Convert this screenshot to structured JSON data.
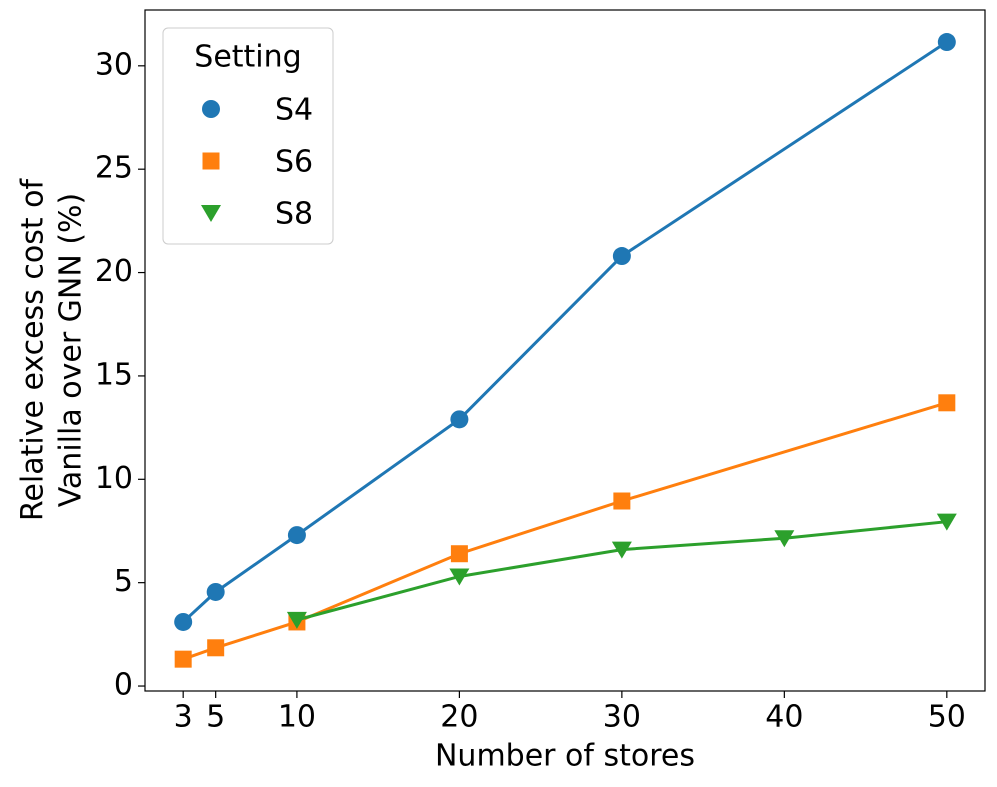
{
  "chart_data": {
    "type": "line",
    "xlabel": "Number of stores",
    "ylabel": [
      "Relative excess cost of",
      "Vanilla over GNN (%)"
    ],
    "legend_title": "Setting",
    "legend_loc": "upper left",
    "xlim": [
      0.65,
      52.35
    ],
    "xticks": [
      3,
      5,
      10,
      20,
      30,
      40,
      50
    ],
    "ylim": [
      -0.24,
      32.7
    ],
    "yticks": [
      0,
      5,
      10,
      15,
      20,
      25,
      30
    ],
    "series": [
      {
        "name": "S4",
        "color": "#1f77b4",
        "marker": "circle",
        "x": [
          3,
          5,
          10,
          20,
          30,
          50
        ],
        "values": [
          3.1,
          4.55,
          7.3,
          12.9,
          20.8,
          31.15
        ]
      },
      {
        "name": "S6",
        "color": "#ff7f0e",
        "marker": "square",
        "x": [
          3,
          5,
          10,
          20,
          30,
          50
        ],
        "values": [
          1.3,
          1.85,
          3.1,
          6.4,
          8.95,
          13.7
        ]
      },
      {
        "name": "S8",
        "color": "#2ca02c",
        "marker": "triangle-down",
        "x": [
          10,
          20,
          30,
          40,
          50
        ],
        "values": [
          3.2,
          5.3,
          6.6,
          7.15,
          7.95
        ]
      }
    ]
  }
}
